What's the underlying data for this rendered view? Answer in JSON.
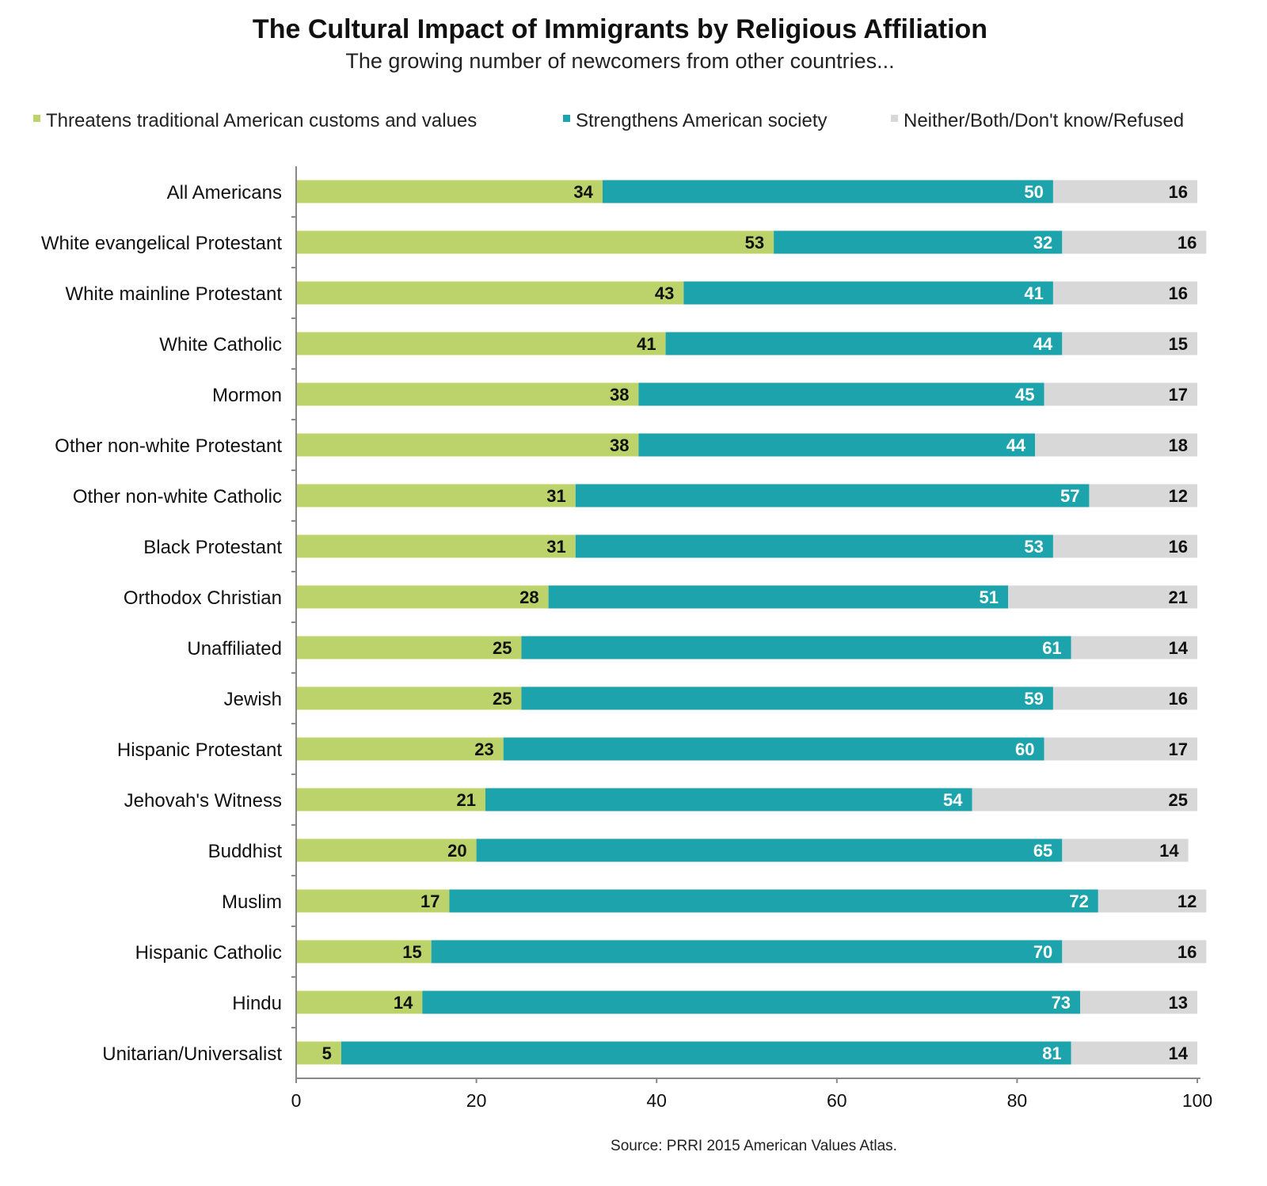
{
  "chart_data": {
    "type": "bar",
    "orientation": "horizontal",
    "stacked": true,
    "title": "The Cultural Impact of Immigrants by Religious Affiliation",
    "subtitle": "The growing number of newcomers from other countries...",
    "source": "Source: PRRI 2015 American Values Atlas.",
    "xlim": [
      0,
      100
    ],
    "xticks": [
      0,
      20,
      40,
      60,
      80,
      100
    ],
    "grid": false,
    "legend_placement": "top",
    "categories": [
      "All Americans",
      "White evangelical Protestant",
      "White mainline Protestant",
      "White Catholic",
      "Mormon",
      "Other non-white Protestant",
      "Other non-white Catholic",
      "Black Protestant",
      "Orthodox Christian",
      "Unaffiliated",
      "Jewish",
      "Hispanic Protestant",
      "Jehovah's Witness",
      "Buddhist",
      "Muslim",
      "Hispanic Catholic",
      "Hindu",
      "Unitarian/Universalist"
    ],
    "series": [
      {
        "name": "Threatens traditional American customs and values",
        "color": "#bcd36b",
        "label_color": "#111111",
        "values": [
          34,
          53,
          43,
          41,
          38,
          38,
          31,
          31,
          28,
          25,
          25,
          23,
          21,
          20,
          17,
          15,
          14,
          5
        ]
      },
      {
        "name": "Strengthens American society",
        "color": "#1ca3ac",
        "label_color": "#ffffff",
        "values": [
          50,
          32,
          41,
          44,
          45,
          44,
          57,
          53,
          51,
          61,
          59,
          60,
          54,
          65,
          72,
          70,
          73,
          81
        ]
      },
      {
        "name": "Neither/Both/Don't know/Refused",
        "color": "#d8d8d8",
        "label_color": "#111111",
        "values": [
          16,
          16,
          16,
          15,
          17,
          18,
          12,
          16,
          21,
          14,
          16,
          17,
          25,
          14,
          12,
          16,
          13,
          14
        ]
      }
    ]
  }
}
